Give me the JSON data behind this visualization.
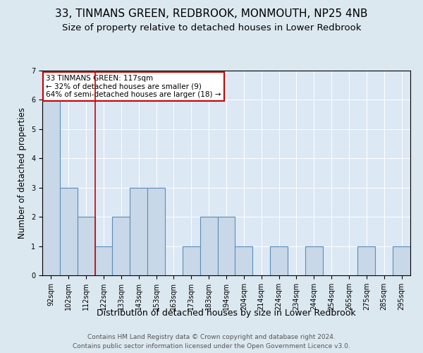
{
  "title": "33, TINMANS GREEN, REDBROOK, MONMOUTH, NP25 4NB",
  "subtitle": "Size of property relative to detached houses in Lower Redbrook",
  "xlabel": "Distribution of detached houses by size in Lower Redbrook",
  "ylabel": "Number of detached properties",
  "categories": [
    "92sqm",
    "102sqm",
    "112sqm",
    "122sqm",
    "133sqm",
    "143sqm",
    "153sqm",
    "163sqm",
    "173sqm",
    "183sqm",
    "194sqm",
    "204sqm",
    "214sqm",
    "224sqm",
    "234sqm",
    "244sqm",
    "254sqm",
    "265sqm",
    "275sqm",
    "285sqm",
    "295sqm"
  ],
  "values": [
    6,
    3,
    2,
    1,
    2,
    3,
    3,
    0,
    1,
    2,
    2,
    1,
    0,
    1,
    0,
    1,
    0,
    0,
    1,
    0,
    1
  ],
  "bar_color": "#c8d8e8",
  "bar_edge_color": "#5b8db8",
  "bar_edge_width": 0.8,
  "red_line_x": 2.5,
  "red_line_color": "#cc0000",
  "ylim": [
    0,
    7
  ],
  "yticks": [
    0,
    1,
    2,
    3,
    4,
    5,
    6,
    7
  ],
  "annotation_text": "33 TINMANS GREEN: 117sqm\n← 32% of detached houses are smaller (9)\n64% of semi-detached houses are larger (18) →",
  "annotation_box_color": "#ffffff",
  "annotation_border_color": "#cc0000",
  "footer1": "Contains HM Land Registry data © Crown copyright and database right 2024.",
  "footer2": "Contains public sector information licensed under the Open Government Licence v3.0.",
  "background_color": "#dce8f0",
  "plot_bg_color": "#dce8f4",
  "title_fontsize": 11,
  "subtitle_fontsize": 9.5,
  "xlabel_fontsize": 9,
  "ylabel_fontsize": 8.5,
  "tick_fontsize": 7,
  "footer_fontsize": 6.5
}
